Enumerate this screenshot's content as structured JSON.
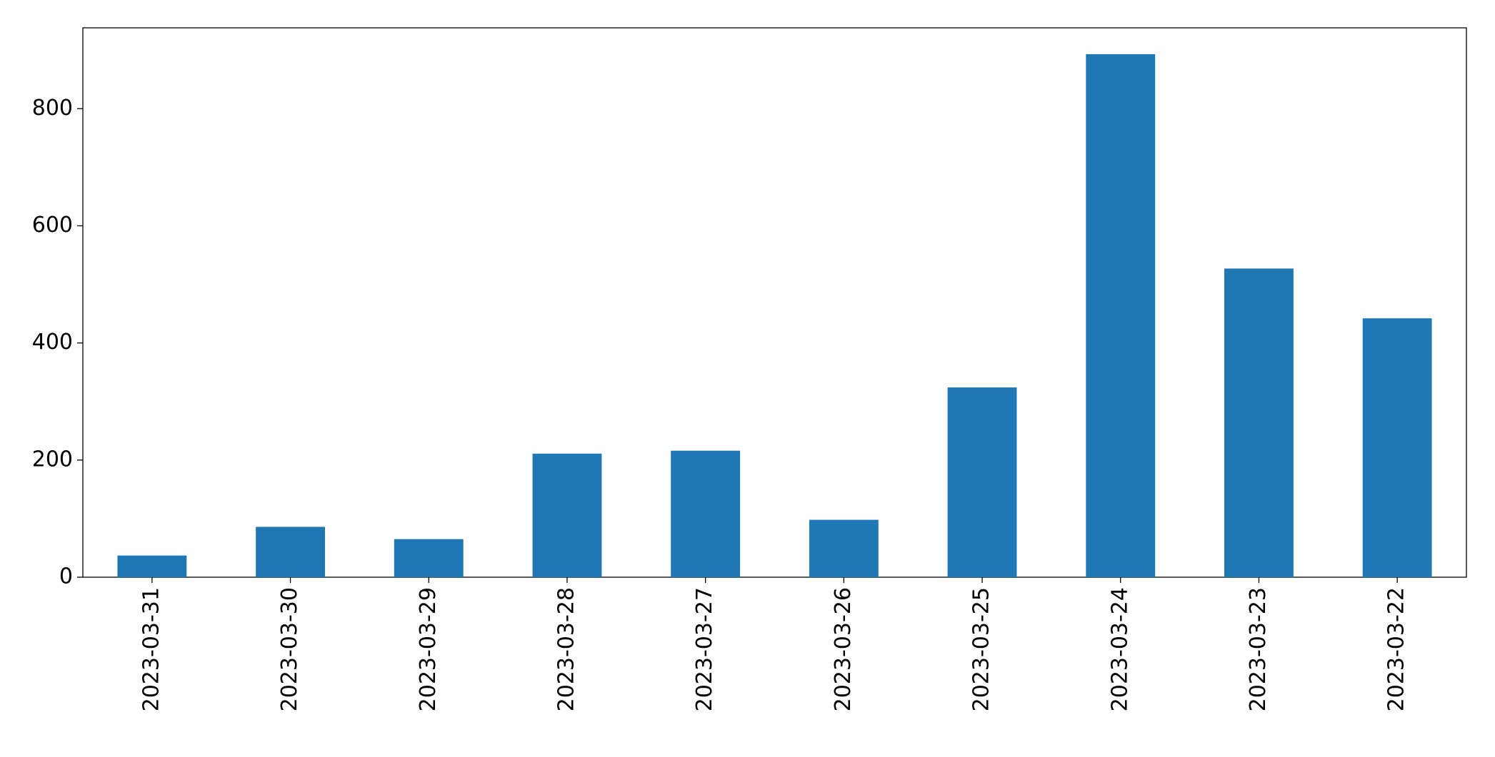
{
  "chart_data": {
    "type": "bar",
    "categories": [
      "2023-03-31",
      "2023-03-30",
      "2023-03-29",
      "2023-03-28",
      "2023-03-27",
      "2023-03-26",
      "2023-03-25",
      "2023-03-24",
      "2023-03-23",
      "2023-03-22"
    ],
    "values": [
      37,
      86,
      65,
      211,
      216,
      98,
      324,
      893,
      527,
      442
    ],
    "color": "#1f77b4",
    "ylim": [
      0,
      938
    ],
    "yticks": [
      0,
      200,
      400,
      600,
      800
    ],
    "grid": false
  }
}
